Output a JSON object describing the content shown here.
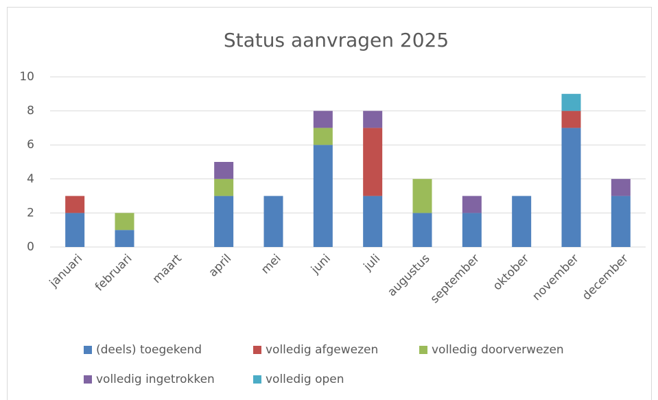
{
  "chart_data": {
    "type": "stacked_bar",
    "title": "Status aanvragen 2025",
    "categories": [
      "januari",
      "februari",
      "maart",
      "april",
      "mei",
      "juni",
      "juli",
      "augustus",
      "september",
      "oktober",
      "november",
      "december"
    ],
    "series": [
      {
        "name": "(deels) toegekend",
        "color": "#4f81bd",
        "values": [
          2,
          1,
          0,
          3,
          3,
          6,
          3,
          2,
          2,
          3,
          7,
          3
        ]
      },
      {
        "name": "volledig afgewezen",
        "color": "#c0504d",
        "values": [
          1,
          0,
          0,
          0,
          0,
          0,
          4,
          0,
          0,
          0,
          1,
          0
        ]
      },
      {
        "name": "volledig doorverwezen",
        "color": "#9bbb59",
        "values": [
          0,
          1,
          0,
          1,
          0,
          1,
          0,
          2,
          0,
          0,
          0,
          0
        ]
      },
      {
        "name": "volledig ingetrokken",
        "color": "#8064a2",
        "values": [
          0,
          0,
          0,
          1,
          0,
          1,
          1,
          0,
          1,
          0,
          0,
          1
        ]
      },
      {
        "name": "volledig open",
        "color": "#4bacc6",
        "values": [
          0,
          0,
          0,
          0,
          0,
          0,
          0,
          0,
          0,
          0,
          1,
          0
        ]
      }
    ],
    "ylim": [
      0,
      10
    ],
    "yticks": [
      0,
      2,
      4,
      6,
      8,
      10
    ],
    "grid": true,
    "legend": "bottom"
  }
}
